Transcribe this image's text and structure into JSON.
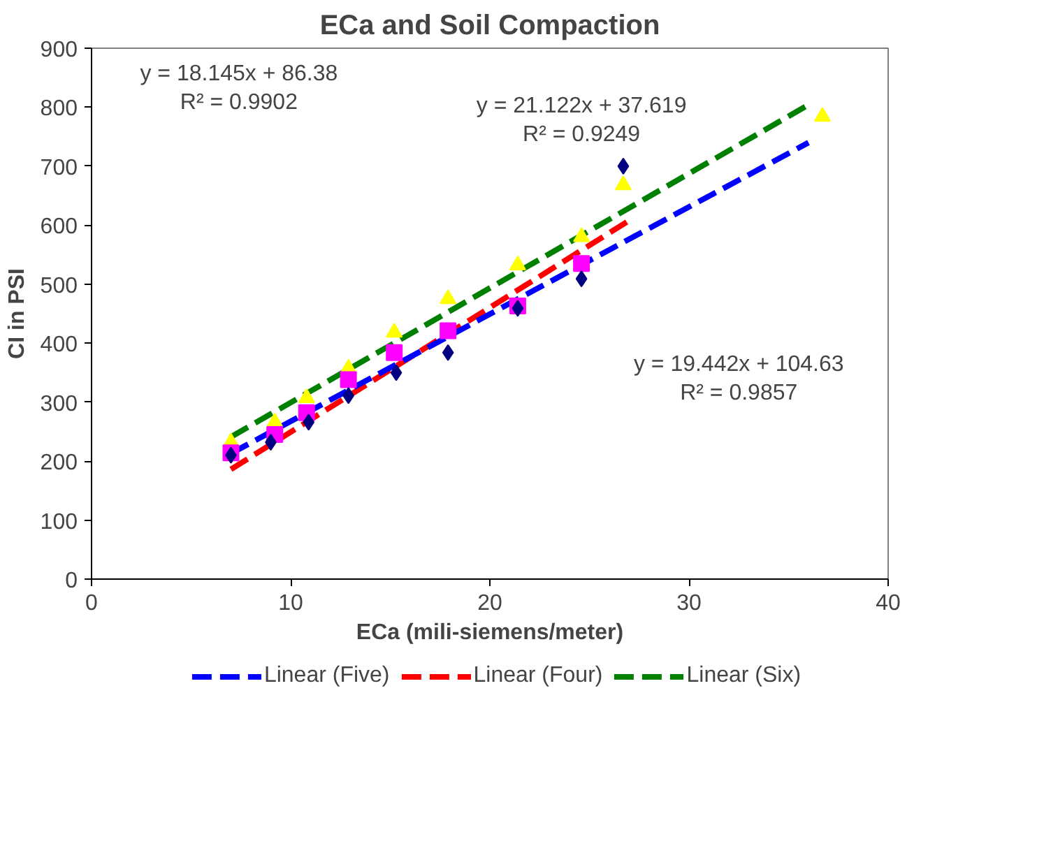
{
  "chart_data": {
    "type": "scatter",
    "title": "ECa and Soil Compaction",
    "xlabel": "ECa (mili-siemens/meter)",
    "ylabel": "CI in PSI",
    "xlim": [
      0,
      40
    ],
    "xticks": [
      0,
      10,
      20,
      30,
      40
    ],
    "ylim": [
      0,
      900
    ],
    "yticks": [
      0,
      100,
      200,
      300,
      400,
      500,
      600,
      700,
      800,
      900
    ],
    "grid": false,
    "legend": "bottom",
    "series": [
      {
        "type": "scatter",
        "marker": "diamond",
        "color": "#000080",
        "x": [
          7.0,
          9.0,
          10.9,
          12.9,
          15.3,
          17.9,
          21.4,
          24.6,
          26.7
        ],
        "values": [
          210,
          232,
          266,
          311,
          350,
          384,
          459,
          509,
          700
        ]
      },
      {
        "type": "scatter",
        "marker": "square",
        "color": "#ff00ff",
        "x": [
          7.0,
          9.2,
          10.8,
          12.9,
          15.2,
          17.9,
          21.4,
          24.6
        ],
        "values": [
          214,
          245,
          282,
          338,
          384,
          421,
          463,
          535
        ]
      },
      {
        "type": "scatter",
        "marker": "triangle",
        "color": "#ffff00",
        "x": [
          7.0,
          9.2,
          10.8,
          12.9,
          15.2,
          17.9,
          21.4,
          24.6,
          26.7,
          36.7
        ],
        "values": [
          232,
          266,
          307,
          357,
          418,
          475,
          532,
          580,
          668,
          784
        ]
      },
      {
        "type": "line",
        "name": "Linear (Five)",
        "line_style": "dashed",
        "color": "#0000ff",
        "x": [
          7,
          36
        ],
        "values": [
          213,
          740
        ]
      },
      {
        "type": "line",
        "name": "Linear (Four)",
        "line_style": "dashed",
        "color": "#ff0000",
        "x": [
          7,
          27
        ],
        "values": [
          186,
          608
        ]
      },
      {
        "type": "line",
        "name": "Linear (Six)",
        "line_style": "dashed",
        "color": "#008000",
        "x": [
          7,
          36
        ],
        "values": [
          241,
          804
        ]
      }
    ],
    "annotations": [
      "y = 18.145x + 86.38\nR² = 0.9902",
      "y = 21.122x + 37.619\nR² = 0.9249",
      "y = 19.442x + 104.63\nR² = 0.9857"
    ]
  }
}
